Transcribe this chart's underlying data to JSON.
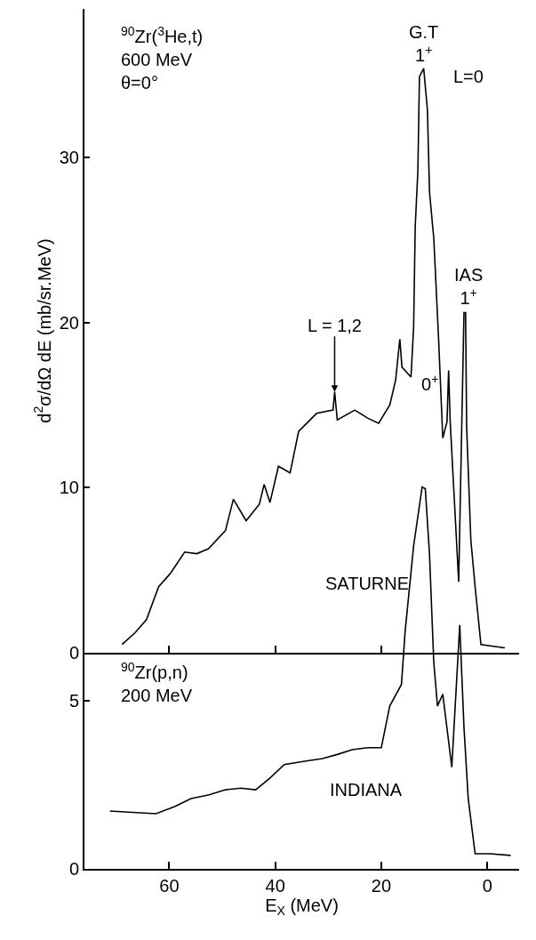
{
  "chart_data": [
    {
      "type": "line",
      "ylabel": "d$^{2}$σ/dΩ dE (mb/sr.MeV)",
      "xlim": [
        76,
        -6
      ],
      "xticks": [
        60,
        40,
        20
      ],
      "ylim": [
        0,
        39
      ],
      "yticks": [
        0,
        10,
        20,
        30
      ],
      "tick_labels": "y",
      "grid": false,
      "marker": "none",
      "line_style": "solid",
      "series": [
        {
          "color": "#000000",
          "x": [
            68.9,
            66.5,
            64.3,
            62.0,
            59.8,
            57.1,
            54.8,
            52.6,
            49.4,
            47.9,
            45.5,
            43.0,
            42.1,
            41.0,
            39.4,
            37.2,
            35.6,
            32.2,
            29.1,
            28.8,
            28.3,
            25.0,
            22.5,
            20.5,
            18.4,
            17.3,
            16.5,
            16.1,
            14.4,
            13.9,
            13.6,
            13.1,
            12.8,
            12.0,
            11.3,
            10.9,
            10.1,
            9.2,
            8.4,
            7.6,
            7.3,
            7.0,
            5.4,
            4.4,
            4.1,
            3.9,
            3.1,
            2.3,
            1.2,
            -3.3
          ],
          "values": [
            0.5,
            1.2,
            2.0,
            4.0,
            4.8,
            6.1,
            6.0,
            6.3,
            7.4,
            9.3,
            8.0,
            9.0,
            10.2,
            9.1,
            11.3,
            10.9,
            13.4,
            14.5,
            14.7,
            15.8,
            14.1,
            14.7,
            14.2,
            13.9,
            15.0,
            16.5,
            19.0,
            17.3,
            16.7,
            19.7,
            25.8,
            29.2,
            34.9,
            35.4,
            32.9,
            27.9,
            25.1,
            19.1,
            13.0,
            14.0,
            17.1,
            14.0,
            4.3,
            20.6,
            20.6,
            13.7,
            6.8,
            4.0,
            0.5,
            0.3
          ]
        }
      ],
      "annotations": [
        "$^{90}$Zr($^{3}$He,t)\n600 MeV\nθ=0°",
        "L=0",
        "SATURNE",
        {
          "text": "G.T\n1$^{+}$",
          "x": 12.0,
          "y": 35.4
        },
        {
          "text": "IAS\n1$^{+}$",
          "x": 4.2,
          "y": 20.6
        },
        {
          "text": "0$^{+}$",
          "x": 7.3,
          "y": 17.1
        },
        {
          "text": "L = 1,2",
          "x": 28.8,
          "y": 15.8
        }
      ]
    },
    {
      "type": "line",
      "xlabel": "E$_{X}$ (MeV)",
      "xlim": [
        76,
        -6
      ],
      "xticks": [
        60,
        40,
        20,
        0
      ],
      "ylim": [
        0,
        11.5
      ],
      "yticks": [
        0,
        5
      ],
      "grid": false,
      "marker": "none",
      "line_style": "solid",
      "series": [
        {
          "color": "#000000",
          "x": [
            71.2,
            66.8,
            62.5,
            59.0,
            55.9,
            52.5,
            49.4,
            46.5,
            43.7,
            41.0,
            38.3,
            34.5,
            31.1,
            28.3,
            25.5,
            22.6,
            20.0,
            18.4,
            16.2,
            15.5,
            13.9,
            12.3,
            11.7,
            10.9,
            10.1,
            9.4,
            8.4,
            6.7,
            5.2,
            4.4,
            3.6,
            2.3,
            -0.5,
            -4.4
          ],
          "values": [
            1.72,
            1.68,
            1.64,
            1.85,
            2.09,
            2.2,
            2.35,
            2.4,
            2.35,
            2.7,
            3.1,
            3.2,
            3.28,
            3.4,
            3.54,
            3.6,
            3.6,
            4.84,
            5.48,
            7.06,
            9.6,
            11.35,
            11.3,
            9.34,
            6.14,
            4.84,
            5.19,
            3.02,
            7.25,
            4.2,
            2.09,
            0.45,
            0.45,
            0.4
          ]
        }
      ],
      "annotations": [
        "$^{90}$Zr(p,n)\n200 MeV",
        "INDIANA"
      ]
    }
  ]
}
